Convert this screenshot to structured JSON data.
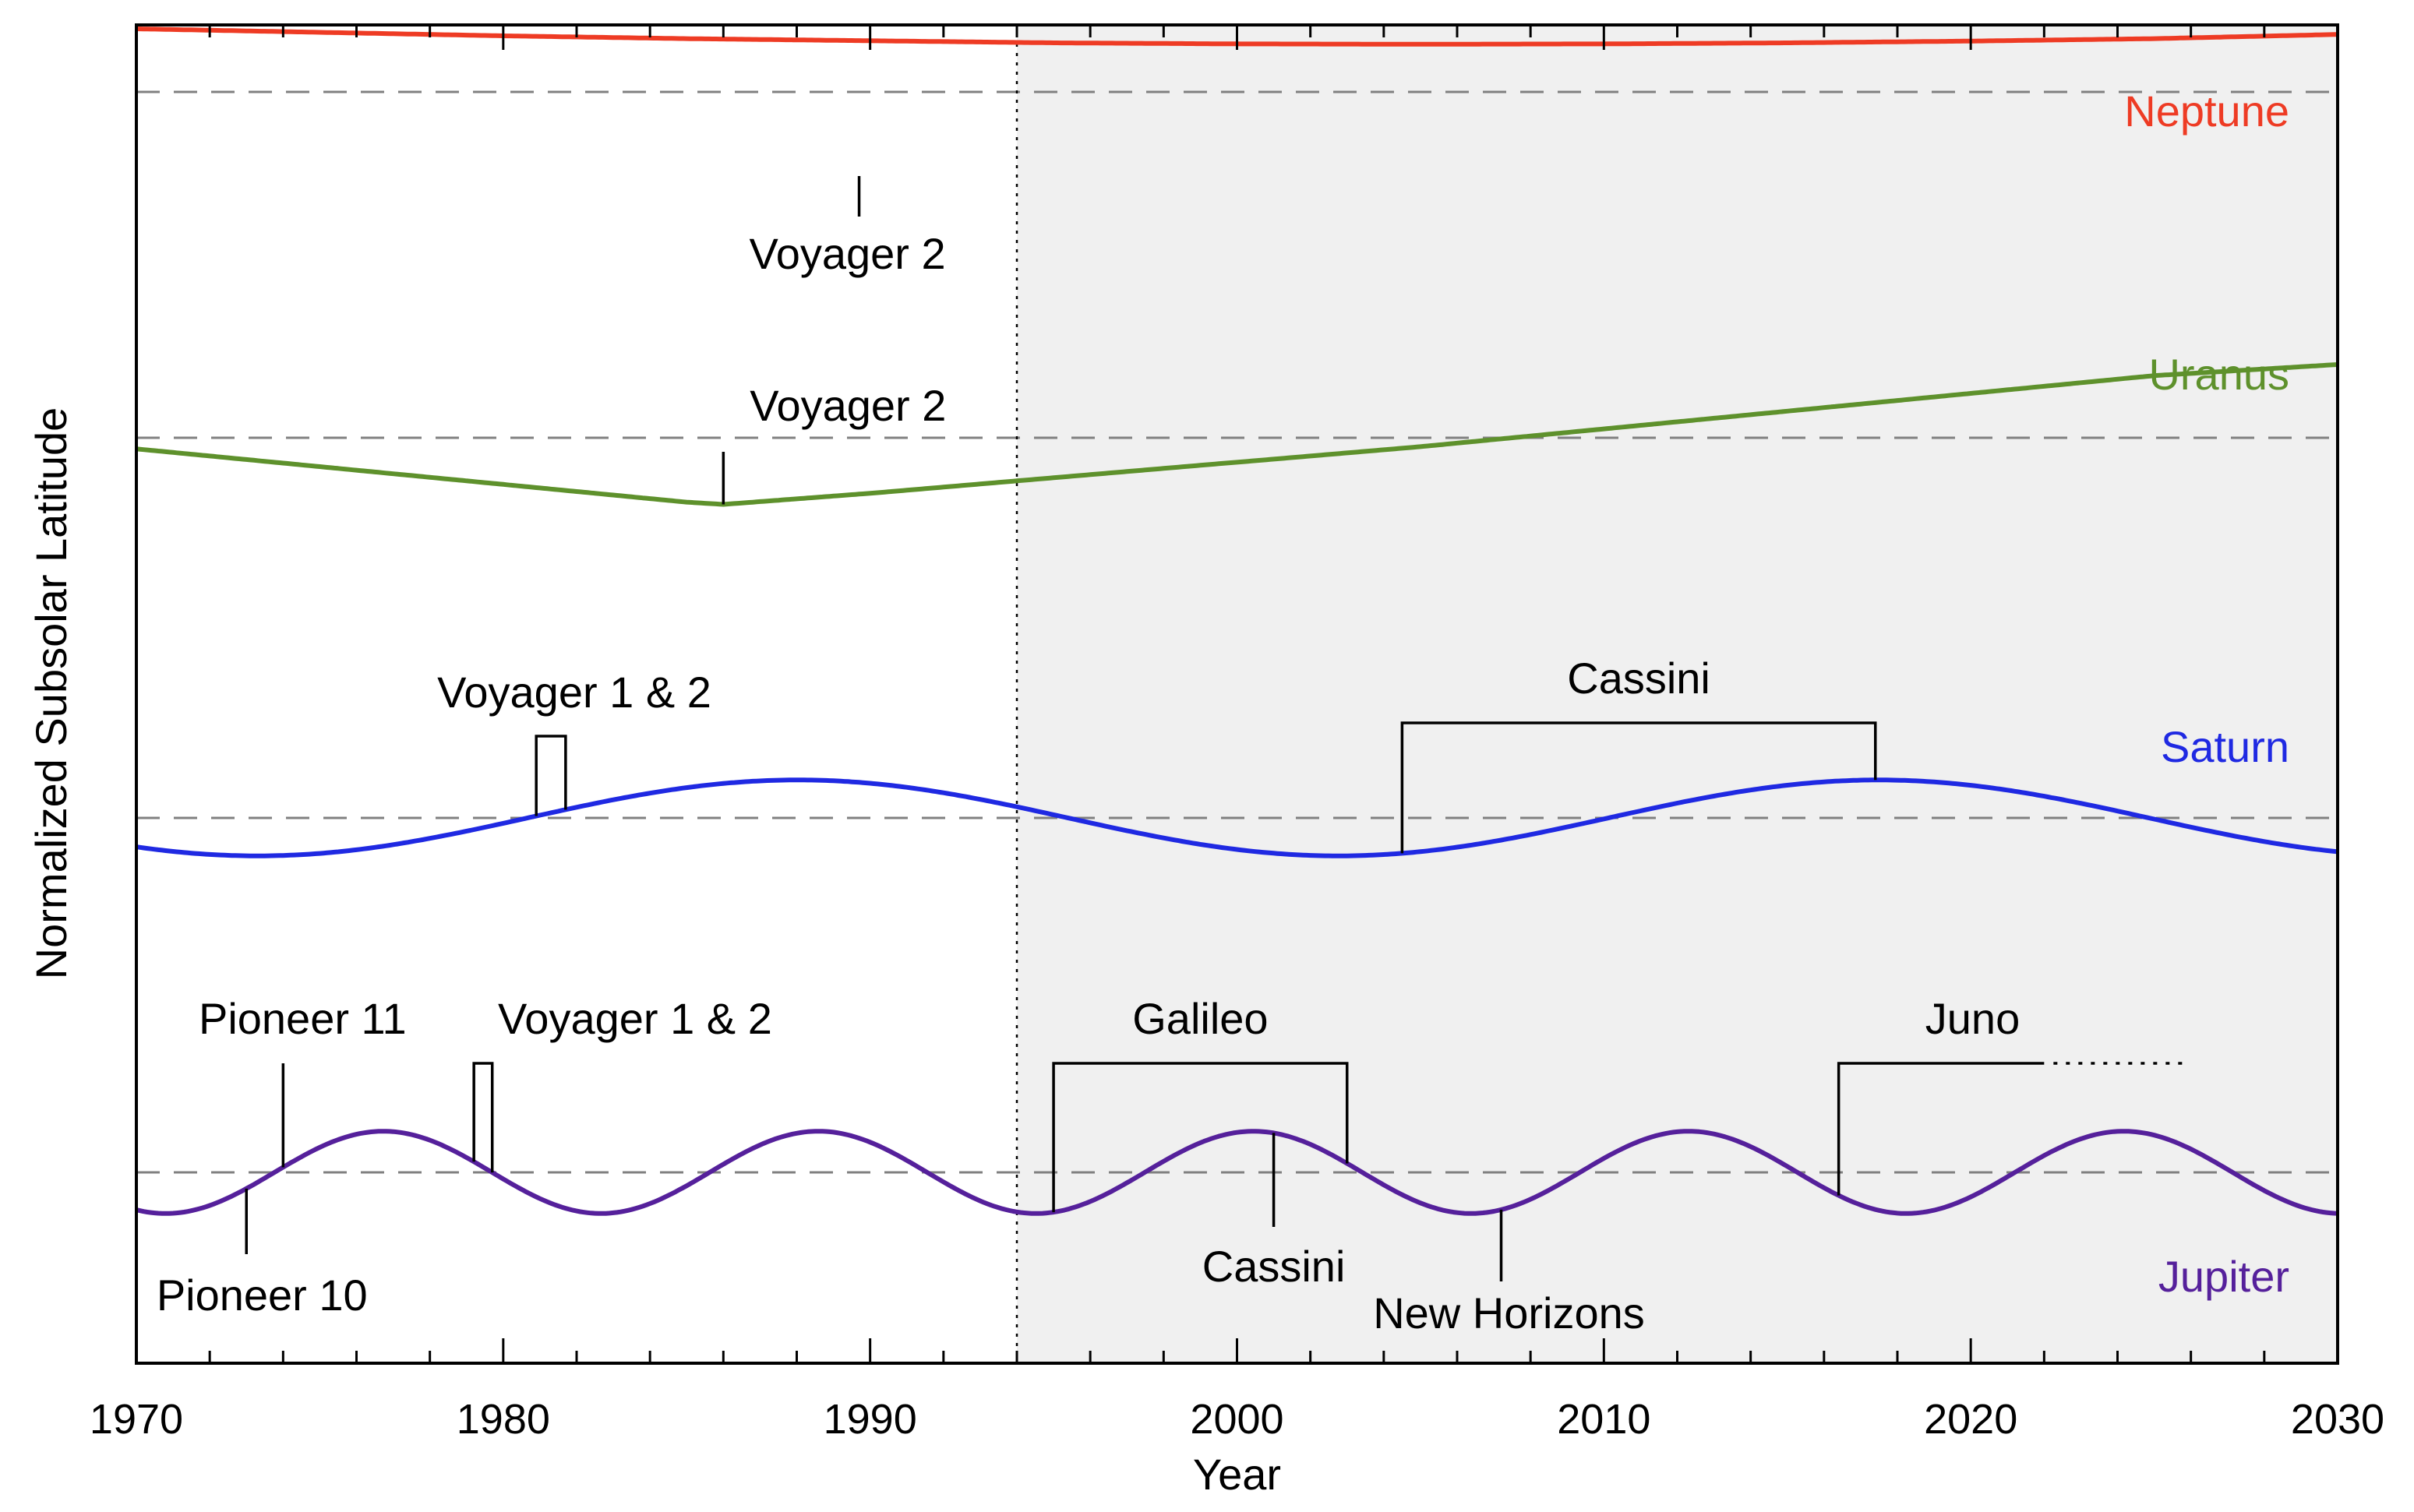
{
  "chart_data": {
    "type": "line",
    "title": "",
    "xlabel": "Year",
    "ylabel": "Normalized Subsolar Latitude",
    "xlim": [
      1970,
      2030
    ],
    "x_ticks": [
      1970,
      1980,
      1990,
      2000,
      2010,
      2020,
      2030
    ],
    "x_tick_labels": [
      "1970",
      "1980",
      "1990",
      "2000",
      "2010",
      "2020",
      "2030"
    ],
    "shaded_region": {
      "from": 1994,
      "to": 2030,
      "color": "#f0f0f0"
    },
    "divider_year": 1994,
    "series": [
      {
        "name": "Neptune",
        "color": "#ee3b24",
        "baseline": 3,
        "x": [
          1970,
          1975,
          1980,
          1985,
          1990,
          1995,
          2000,
          2005,
          2010,
          2015,
          2020,
          2025,
          2030
        ],
        "values": [
          3.9,
          3.85,
          3.8,
          3.76,
          3.73,
          3.7,
          3.685,
          3.68,
          3.685,
          3.7,
          3.725,
          3.76,
          3.82
        ]
      },
      {
        "name": "Uranus",
        "color": "#5e912c",
        "baseline": 2,
        "x": [
          1970,
          1975,
          1980,
          1985,
          1986,
          1990,
          1995,
          2000,
          2005,
          2010,
          2015,
          2020,
          2025,
          2030
        ],
        "values": [
          1.95,
          1.87,
          1.79,
          1.71,
          1.7,
          1.75,
          1.82,
          1.89,
          1.96,
          2.04,
          2.12,
          2.2,
          2.28,
          2.33
        ]
      },
      {
        "name": "Saturn",
        "color": "#1f29e2",
        "baseline": 1,
        "period_years": 29.46,
        "min_year": 1973.3,
        "amplitude": 0.21,
        "x": [
          1970,
          1973.3,
          1980.7,
          1988.0,
          1995.4,
          2002.8,
          2010.1,
          2017.5,
          2030
        ],
        "values": [
          0.83,
          0.79,
          1.0,
          1.21,
          1.0,
          0.79,
          1.0,
          1.21,
          0.83
        ]
      },
      {
        "name": "Jupiter",
        "color": "#55209b",
        "baseline": 0,
        "period_years": 11.86,
        "min_year": 1970.8,
        "amplitude": 0.24,
        "x": [
          1970.8,
          1976.7,
          1982.7,
          1988.6,
          1994.5,
          2000.4,
          2006.4,
          2012.3,
          2018.2,
          2024.2
        ],
        "values": [
          -0.24,
          0.24,
          -0.24,
          0.24,
          -0.24,
          0.24,
          -0.24,
          0.24,
          -0.24,
          0.24
        ]
      }
    ],
    "planet_labels": [
      {
        "text": "Neptune",
        "series": "Neptune"
      },
      {
        "text": "Uranus",
        "series": "Uranus"
      },
      {
        "text": "Saturn",
        "series": "Saturn"
      },
      {
        "text": "Jupiter",
        "series": "Jupiter"
      }
    ],
    "annotations": [
      {
        "type": "tick",
        "text": "Voyager 2",
        "series": "Neptune",
        "year": 1989.7,
        "side": "below"
      },
      {
        "type": "tick",
        "text": "Voyager 2",
        "series": "Uranus",
        "year": 1986.0,
        "side": "above"
      },
      {
        "type": "pair",
        "text": "Voyager 1 & 2",
        "series": "Saturn",
        "years": [
          1980.9,
          1981.7
        ]
      },
      {
        "type": "bracket",
        "text": "Cassini",
        "series": "Saturn",
        "years": [
          2004.5,
          2017.4
        ]
      },
      {
        "type": "tick",
        "text": "Pioneer 11",
        "series": "Jupiter",
        "year": 1974.0,
        "side": "above"
      },
      {
        "type": "pair",
        "text": "Voyager 1 & 2",
        "series": "Jupiter",
        "years": [
          1979.2,
          1979.7
        ]
      },
      {
        "type": "tick",
        "text": "Pioneer 10",
        "series": "Jupiter",
        "year": 1973.0,
        "side": "below"
      },
      {
        "type": "bracket",
        "text": "Galileo",
        "series": "Jupiter",
        "years": [
          1995.0,
          2003.0
        ]
      },
      {
        "type": "tick",
        "text": "Cassini",
        "series": "Jupiter",
        "year": 2001.0,
        "side": "below"
      },
      {
        "type": "tick",
        "text": "New Horizons",
        "series": "Jupiter",
        "year": 2007.2,
        "side": "below"
      },
      {
        "type": "open-bracket",
        "text": "Juno",
        "series": "Jupiter",
        "years": [
          2016.4,
          2022.0,
          2025.9
        ]
      }
    ]
  }
}
